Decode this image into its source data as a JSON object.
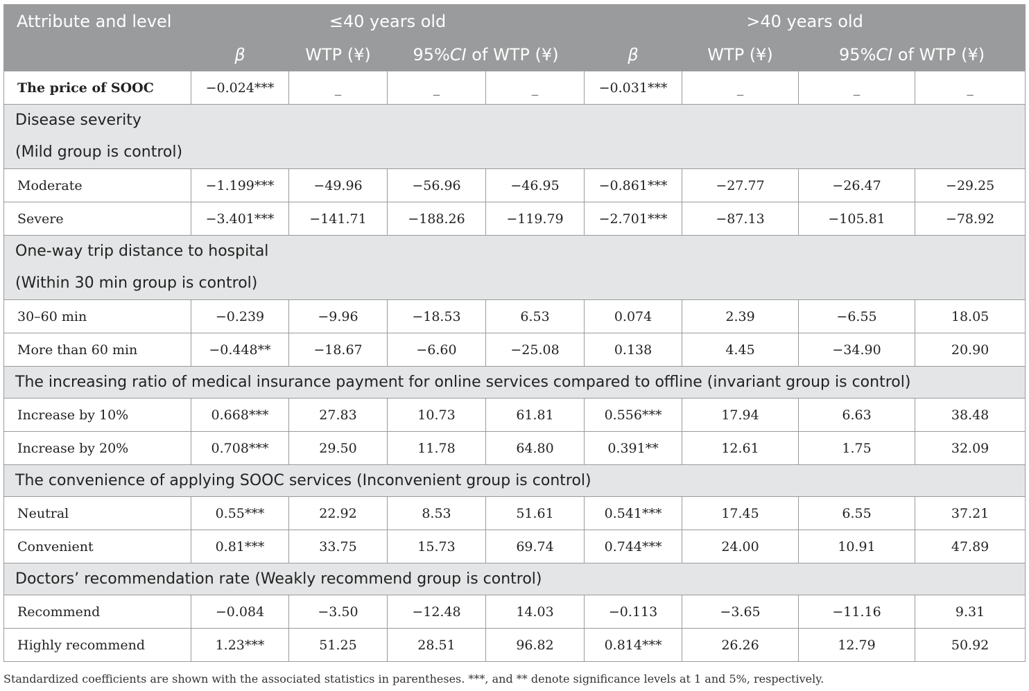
{
  "header": {
    "corner": "Attribute and level",
    "group1": "≤40 years old",
    "group2": ">40 years old",
    "beta": "β",
    "wtp": "WTP (¥)",
    "ci_prefix": "95%",
    "ci_italic": "CI",
    "ci_suffix": " of WTP (¥)"
  },
  "rows": {
    "price": {
      "label": "The price of SOOC",
      "v": [
        "−0.024***",
        "_",
        "_",
        "_",
        "−0.031***",
        "_",
        "_",
        "_"
      ]
    },
    "sec1": {
      "line1": "Disease severity",
      "line2": "(Mild group is control)"
    },
    "moderate": {
      "label": "Moderate",
      "v": [
        "−1.199***",
        "−49.96",
        "−56.96",
        "−46.95",
        "−0.861***",
        "−27.77",
        "−26.47",
        "−29.25"
      ]
    },
    "severe": {
      "label": "Severe",
      "v": [
        "−3.401***",
        "−141.71",
        "−188.26",
        "−119.79",
        "−2.701***",
        "−87.13",
        "−105.81",
        "−78.92"
      ]
    },
    "sec2": {
      "line1": "One-way trip distance to hospital",
      "line2": "(Within 30 min group is control)"
    },
    "d3060": {
      "label": "30–60 min",
      "v": [
        "−0.239",
        "−9.96",
        "−18.53",
        "6.53",
        "0.074",
        "2.39",
        "−6.55",
        "18.05"
      ]
    },
    "d60": {
      "label": "More than 60 min",
      "v": [
        "−0.448**",
        "−18.67",
        "−6.60",
        "−25.08",
        "0.138",
        "4.45",
        "−34.90",
        "20.90"
      ]
    },
    "sec3": {
      "line1": "The increasing ratio of medical insurance payment for online services compared to offline (invariant group is control)"
    },
    "inc10": {
      "label": "Increase by 10%",
      "v": [
        "0.668***",
        "27.83",
        "10.73",
        "61.81",
        "0.556***",
        "17.94",
        "6.63",
        "38.48"
      ]
    },
    "inc20": {
      "label": "Increase by 20%",
      "v": [
        "0.708***",
        "29.50",
        "11.78",
        "64.80",
        "0.391**",
        "12.61",
        "1.75",
        "32.09"
      ]
    },
    "sec4": {
      "line1": "The convenience of applying SOOC services (Inconvenient group is control)"
    },
    "neutral": {
      "label": "Neutral",
      "v": [
        "0.55***",
        "22.92",
        "8.53",
        "51.61",
        "0.541***",
        "17.45",
        "6.55",
        "37.21"
      ]
    },
    "convenient": {
      "label": "Convenient",
      "v": [
        "0.81***",
        "33.75",
        "15.73",
        "69.74",
        "0.744***",
        "24.00",
        "10.91",
        "47.89"
      ]
    },
    "sec5": {
      "line1": "Doctors’ recommendation rate (Weakly recommend group is control)"
    },
    "recommend": {
      "label": "Recommend",
      "v": [
        "−0.084",
        "−3.50",
        "−12.48",
        "14.03",
        "−0.113",
        "−3.65",
        "−11.16",
        "9.31"
      ]
    },
    "highly": {
      "label": "Highly recommend",
      "v": [
        "1.23***",
        "51.25",
        "28.51",
        "96.82",
        "0.814***",
        "26.26",
        "12.79",
        "50.92"
      ]
    }
  },
  "footnote": "Standardized coefficients are shown with the associated statistics in parentheses. ***, and ** denote significance levels at 1 and 5%, respectively."
}
